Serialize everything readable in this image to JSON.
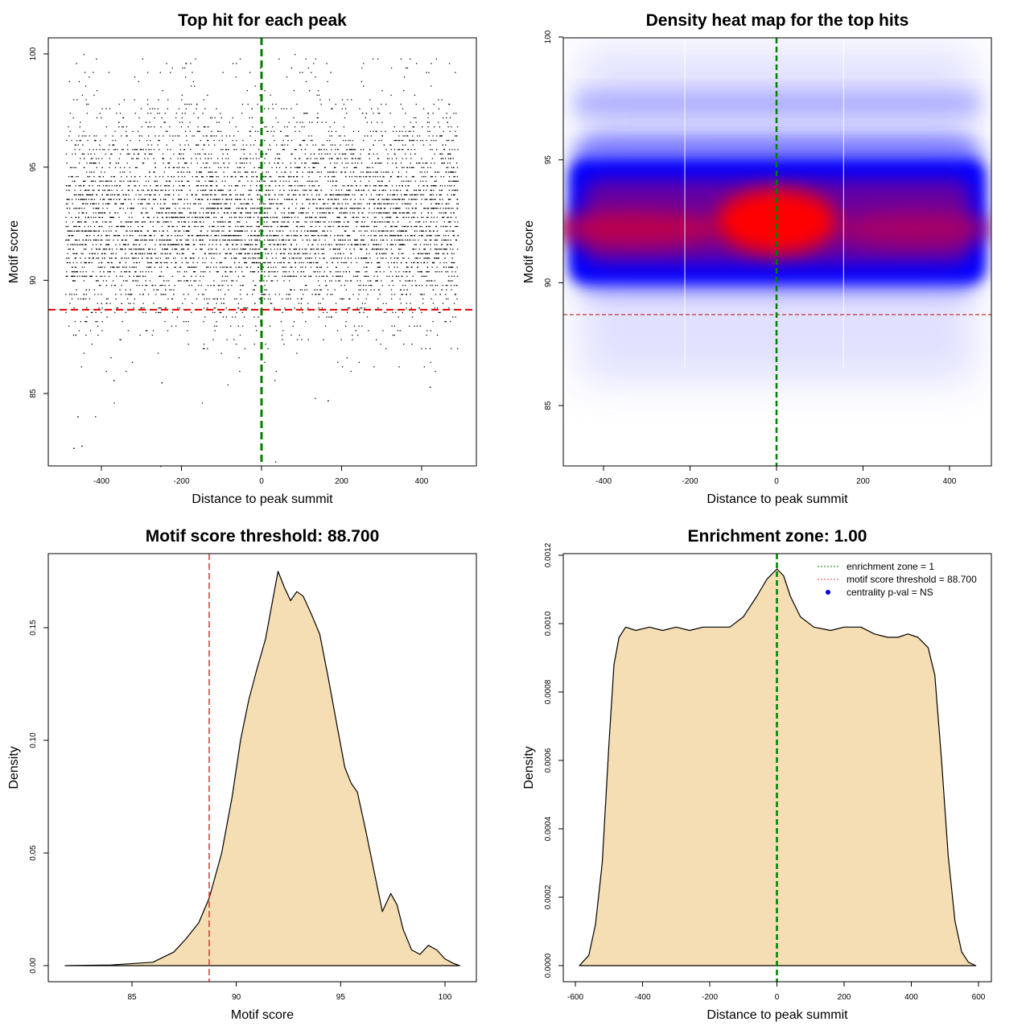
{
  "chart_data": [
    {
      "type": "scatter",
      "title": "Top hit for each peak",
      "xlabel": "Distance to peak summit",
      "ylabel": "Motif score",
      "xlim": [
        -500,
        500
      ],
      "ylim": [
        82,
        101
      ],
      "xticks": [
        -400,
        -200,
        0,
        200,
        400
      ],
      "yticks": [
        85,
        90,
        95,
        100
      ],
      "points_summary": {
        "n": 6000,
        "x_range": [
          -490,
          490
        ],
        "y_range": [
          82.5,
          100
        ]
      },
      "vline": {
        "x": 0,
        "color": "#008000"
      },
      "hline": {
        "y": 88.7,
        "color": "#e00000"
      }
    },
    {
      "type": "heatmap",
      "title": "Density heat map for the top hits",
      "xlabel": "Distance to peak summit",
      "ylabel": "Motif score",
      "xlim": [
        -490,
        490
      ],
      "ylim": [
        82.5,
        101
      ],
      "xticks": [
        -400,
        -200,
        0,
        200,
        400
      ],
      "yticks": [
        85,
        90,
        95,
        100
      ],
      "high_density_band": [
        90,
        95
      ],
      "peak": {
        "x": 0,
        "y": 92.5
      },
      "vline": {
        "x": 0,
        "color": "#008000"
      },
      "hline": {
        "y": 88.7,
        "color": "#c00000"
      },
      "white_lines_x": [
        -212,
        155
      ]
    },
    {
      "type": "area",
      "title": "Motif score threshold: 88.700",
      "xlabel": "Motif score",
      "ylabel": "Density",
      "xlim": [
        81.5,
        101
      ],
      "ylim": [
        -0.006,
        0.184
      ],
      "xticks": [
        85,
        90,
        95,
        100
      ],
      "yticks": [
        0.0,
        0.05,
        0.1,
        0.15
      ],
      "ytick_labels": [
        "0.00",
        "0.05",
        "0.10",
        "0.15"
      ],
      "x": [
        81.8,
        84,
        86,
        87,
        87.6,
        88.2,
        88.7,
        89.3,
        89.8,
        90.2,
        90.6,
        91,
        91.4,
        91.8,
        92,
        92.3,
        92.6,
        92.9,
        93.2,
        93.6,
        94,
        94.4,
        94.8,
        95.2,
        95.5,
        95.8,
        96.2,
        96.6,
        97,
        97.4,
        97.7,
        98,
        98.4,
        98.8,
        99.2,
        99.6,
        100,
        100.4,
        100.7
      ],
      "y": [
        0,
        0.0003,
        0.0015,
        0.006,
        0.012,
        0.019,
        0.03,
        0.05,
        0.075,
        0.1,
        0.118,
        0.132,
        0.145,
        0.165,
        0.175,
        0.168,
        0.162,
        0.166,
        0.164,
        0.156,
        0.147,
        0.128,
        0.108,
        0.088,
        0.081,
        0.077,
        0.06,
        0.042,
        0.024,
        0.032,
        0.027,
        0.016,
        0.007,
        0.005,
        0.009,
        0.007,
        0.003,
        0.001,
        0
      ],
      "vline": {
        "x": 88.7,
        "color": "#e03030"
      }
    },
    {
      "type": "area",
      "title": "Enrichment zone: 1.00",
      "xlabel": "Distance to peak summit",
      "ylabel": "Density",
      "xlim": [
        -620,
        640
      ],
      "ylim": [
        -3e-05,
        0.00121
      ],
      "xticks": [
        -600,
        -400,
        -200,
        0,
        200,
        400,
        600
      ],
      "yticks": [
        0,
        0.0002,
        0.0004,
        0.0006,
        0.0008,
        0.001,
        0.0012
      ],
      "ytick_labels": [
        "0.0000",
        "0.0002",
        "0.0004",
        "0.0006",
        "0.0008",
        "0.0010",
        "0.0012"
      ],
      "x": [
        -588,
        -560,
        -540,
        -520,
        -500,
        -485,
        -470,
        -450,
        -420,
        -380,
        -340,
        -300,
        -260,
        -220,
        -180,
        -140,
        -100,
        -60,
        -30,
        0,
        20,
        40,
        70,
        110,
        160,
        200,
        250,
        290,
        330,
        360,
        390,
        420,
        450,
        470,
        490,
        510,
        530,
        550,
        570,
        592
      ],
      "y": [
        0,
        3e-05,
        0.00012,
        0.0003,
        0.00065,
        0.00088,
        0.00096,
        0.00099,
        0.00098,
        0.00099,
        0.00098,
        0.00099,
        0.00098,
        0.00099,
        0.00099,
        0.00099,
        0.00102,
        0.00108,
        0.00113,
        0.00116,
        0.00114,
        0.00108,
        0.00102,
        0.00099,
        0.00098,
        0.00099,
        0.00099,
        0.00097,
        0.00096,
        0.00096,
        0.00097,
        0.00096,
        0.00093,
        0.00085,
        0.0006,
        0.00032,
        0.00013,
        4e-05,
        1e-05,
        0
      ],
      "vline": {
        "x": 0,
        "color": "#008000"
      },
      "legend": {
        "placement": "top-right",
        "entries": [
          {
            "label": "enrichment zone = 1",
            "color": "#008000",
            "style": "dotted-line"
          },
          {
            "label": "motif score threshold = 88.700",
            "color": "#ff4040",
            "style": "dotted-line"
          },
          {
            "label": "centrality p-val = NS",
            "color": "#0000ff",
            "style": "point"
          }
        ]
      }
    }
  ]
}
